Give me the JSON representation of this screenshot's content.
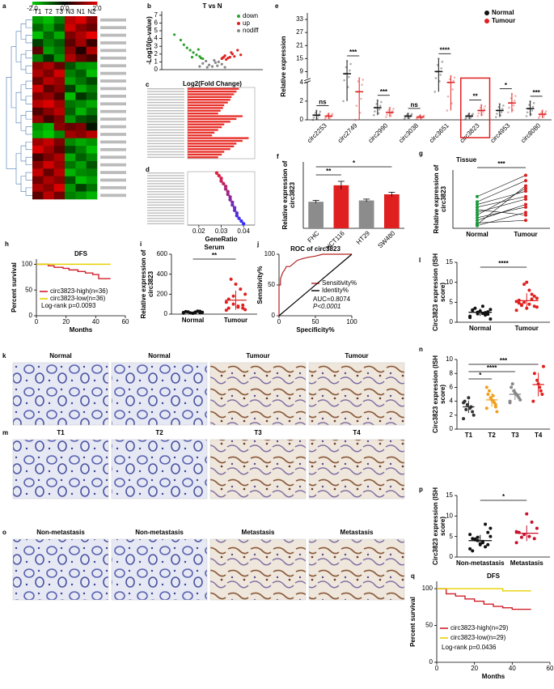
{
  "chart_data": [
    {
      "type": "heatmap",
      "panel": "a",
      "columns": [
        "T1",
        "T2",
        "T3",
        "N3",
        "N1",
        "N2"
      ],
      "colorticks": [
        {
          "value": -2,
          "label": "-2.0"
        },
        {
          "value": 0,
          "label": "0.0"
        },
        {
          "value": 2,
          "label": "2.0"
        }
      ],
      "values": [
        [
          -1.5,
          -1.8,
          -1.2,
          1.6,
          1.9,
          1.2
        ],
        [
          -1,
          -1.5,
          -0.8,
          1.8,
          1.2,
          0.9
        ],
        [
          -1.8,
          -1,
          -1.6,
          1.1,
          1.5,
          2
        ],
        [
          -0.6,
          -1.2,
          -0.9,
          0.8,
          1.4,
          0.5
        ],
        [
          0.8,
          -1.5,
          -1.1,
          1.2,
          0.3,
          1.5
        ],
        [
          -1.2,
          -0.5,
          -1.4,
          1.5,
          0.9,
          0.6
        ],
        [
          1.2,
          1.5,
          0.9,
          -0.8,
          -1.4,
          -1.5
        ],
        [
          1.5,
          1.1,
          1.8,
          -1.2,
          -0.9,
          -1.8
        ],
        [
          0.9,
          1.6,
          1.3,
          -1.5,
          -1.1,
          -0.7
        ],
        [
          1.8,
          0.8,
          1.2,
          -0.6,
          -1.6,
          -1.2
        ],
        [
          1.1,
          1.3,
          0.7,
          -1.8,
          -0.5,
          -0.9
        ],
        [
          1.6,
          1.9,
          1.4,
          -1.1,
          -1.3,
          -1.6
        ],
        [
          0.7,
          1.2,
          1.6,
          -0.9,
          -1.7,
          -1.1
        ],
        [
          1.3,
          0.6,
          1.1,
          -1.4,
          -0.8,
          -0.6
        ],
        [
          -1.4,
          -1.7,
          1.2,
          0.9,
          1.1,
          -0.2
        ],
        [
          -1.6,
          -1.9,
          -1.3,
          1.4,
          1.2,
          1.6
        ],
        [
          1.4,
          1.7,
          1.1,
          -1.3,
          -1.6,
          -1.4
        ],
        [
          1.9,
          1.4,
          0.8,
          -0.7,
          -1.2,
          -1.8
        ],
        [
          0.6,
          1.1,
          1.5,
          -1.6,
          -0.9,
          -1.3
        ],
        [
          1.2,
          1.8,
          1.3,
          -1.1,
          -1.5,
          -0.8
        ],
        [
          1.7,
          0.9,
          1.6,
          -1.7,
          -1.3,
          -1.2
        ],
        [
          1.0,
          1.5,
          1.2,
          -0.8,
          -1.8,
          -1.5
        ],
        [
          1.5,
          1.2,
          1.9,
          -1.4,
          -0.6,
          -1.1
        ],
        [
          0.8,
          1.6,
          1.0,
          -1.2,
          -1.4,
          -1.7
        ]
      ]
    },
    {
      "type": "scatter",
      "panel": "b",
      "title": "T vs N",
      "xlabel": "Log2(Fold Change)",
      "ylabel": "-Log10(p-value)",
      "xlim": [
        -8,
        8
      ],
      "ylim": [
        0,
        7.5
      ],
      "yticks": [
        0,
        1,
        2,
        3,
        4,
        5,
        6,
        7
      ],
      "series": [
        {
          "name": "down",
          "color": "#2ca02c",
          "x": [
            -6,
            -5,
            -4.5,
            -4,
            -3.5,
            -3,
            -2.5,
            -2,
            -1.8,
            -1.5,
            -3.2,
            -2.2
          ],
          "values": [
            4.5,
            3.8,
            3.2,
            2.8,
            2.5,
            2.2,
            1.9,
            1.7,
            1.5,
            1.4,
            1.6,
            2.6
          ]
        },
        {
          "name": "up",
          "color": "#e02020",
          "x": [
            1.5,
            1.8,
            2,
            2.5,
            3,
            3.5,
            4,
            4.5,
            2.2,
            2.8,
            1.6,
            3.2
          ],
          "values": [
            1.4,
            1.6,
            1.8,
            1.5,
            2.2,
            1.7,
            2.5,
            1.9,
            1.3,
            1.6,
            1.5,
            2.0
          ]
        },
        {
          "name": "nodiff",
          "color": "#888888",
          "x": [
            -1.5,
            -1,
            -0.5,
            0,
            0.5,
            1,
            1.5,
            -0.8,
            0.3,
            0.8,
            -2,
            2
          ],
          "values": [
            0.8,
            1.1,
            0.6,
            0.4,
            0.9,
            1.0,
            0.7,
            0.3,
            1.2,
            0.5,
            0.4,
            0.3
          ]
        }
      ]
    },
    {
      "type": "hbar",
      "panel": "c",
      "color": "#e8302a",
      "xlim": [
        0,
        0.55
      ],
      "values": [
        0.42,
        0.4,
        0.38,
        0.36,
        0.35,
        0.33,
        0.3,
        0.29,
        0.27,
        0.25,
        0.45,
        0.4,
        0.35,
        0.3,
        0.28,
        0.25,
        0.22,
        0.2,
        0.5,
        0.45,
        0.4,
        0.38,
        0.35,
        0.3,
        0.28,
        0.25
      ]
    },
    {
      "type": "dotx",
      "panel": "d",
      "xlabel": "GeneRatio",
      "xlim": [
        0.015,
        0.045
      ],
      "xticks": [
        0.02,
        0.03,
        0.04
      ],
      "values": [
        0.028,
        0.029,
        0.03,
        0.03,
        0.031,
        0.032,
        0.032,
        0.033,
        0.033,
        0.034,
        0.034,
        0.035,
        0.035,
        0.036,
        0.036,
        0.037,
        0.037,
        0.038,
        0.039,
        0.04
      ]
    },
    {
      "type": "grouped",
      "panel": "e",
      "ylabel": "Relative expression",
      "ylim": [
        0,
        36
      ],
      "ybreak": 4,
      "yticks": [
        0,
        2,
        4,
        9,
        15,
        21,
        27,
        33
      ],
      "categories": [
        "circ2253",
        "circ2749",
        "circ2990",
        "circ3038",
        "circ3651",
        "circ3823",
        "circ4953",
        "circ8080"
      ],
      "significance": [
        "ns",
        "***",
        "***",
        "ns",
        "****",
        "**",
        "*",
        "***"
      ],
      "series": [
        {
          "name": "Normal",
          "color": "#111111",
          "means": [
            0.5,
            8,
            1.3,
            0.4,
            9,
            0.4,
            1.0,
            1.2
          ],
          "sds": [
            0.5,
            6,
            0.8,
            0.3,
            6,
            0.3,
            0.7,
            0.8
          ]
        },
        {
          "name": "Tumour",
          "color": "#e02020",
          "means": [
            0.4,
            3,
            0.8,
            0.3,
            4,
            1.0,
            1.8,
            0.6
          ],
          "sds": [
            0.3,
            3,
            0.5,
            0.2,
            3,
            0.6,
            1,
            0.4
          ]
        }
      ]
    },
    {
      "type": "bar",
      "panel": "f",
      "ylabel": "Relative expression of circ3823",
      "ylim": [
        0,
        2.5
      ],
      "categories": [
        "FHC",
        "HCT116",
        "HT29",
        "SW480"
      ],
      "values": [
        1.0,
        1.62,
        1.05,
        1.28
      ],
      "errors": [
        0.05,
        0.15,
        0.05,
        0.08
      ],
      "colors": [
        "#8c8c8c",
        "#e02020",
        "#8c8c8c",
        "#e02020"
      ],
      "significance": [
        "**",
        "*"
      ]
    },
    {
      "type": "paired",
      "panel": "g",
      "title": "Tissue",
      "ylabel": "Relative expression of circ3823",
      "ylim": [
        0,
        2.2
      ],
      "categories": [
        "Normal",
        "Tumour"
      ],
      "colors": [
        "#1a9a3a",
        "#e02020"
      ],
      "significance": [
        "***"
      ],
      "points": [
        [
          0.1,
          0.3,
          0.5,
          0.8,
          1.0,
          0.2,
          0.6,
          0.4,
          0.15,
          0.7,
          0.9,
          1.2
        ],
        [
          0.6,
          0.9,
          1.5,
          1.2,
          1.8,
          0.3,
          1.1,
          0.8,
          1.6,
          0.5,
          1.4,
          2.0
        ]
      ]
    },
    {
      "type": "km",
      "panel": "h",
      "title": "DFS",
      "xlabel": "Months",
      "ylabel": "Percent survival",
      "annotation": "Log-rank p=0.0093",
      "xlim": [
        0,
        60
      ],
      "xticks": [
        0,
        20,
        40,
        60
      ],
      "ylim": [
        0,
        110
      ],
      "yticks": [
        0,
        50,
        100
      ],
      "series": [
        {
          "name": "circ3823-high(n=36)",
          "color": "#d0202a",
          "x": [
            0,
            8,
            12,
            18,
            22,
            28,
            33,
            38,
            42,
            50
          ],
          "values": [
            100,
            97,
            94,
            92,
            89,
            86,
            83,
            80,
            72,
            72
          ]
        },
        {
          "name": "circ3823-low(n=36)",
          "color": "#e8d000",
          "x": [
            0,
            50
          ],
          "values": [
            100,
            100
          ]
        }
      ]
    },
    {
      "type": "dotplot",
      "panel": "i",
      "title": "Serum",
      "ylabel": "Relative expression of circ3823",
      "ylim": [
        0,
        600
      ],
      "yticks": [
        0,
        200,
        400,
        600
      ],
      "categories": [
        "Normal",
        "Tumour"
      ],
      "colors": [
        "#111111",
        "#e02020"
      ],
      "significance": [
        "**"
      ],
      "points": [
        [
          10,
          15,
          20,
          12,
          25,
          18,
          30,
          8,
          22,
          16,
          28,
          14
        ],
        [
          40,
          60,
          80,
          100,
          150,
          200,
          250,
          300,
          350,
          120,
          90,
          70,
          180,
          60,
          45
        ]
      ],
      "means": [
        19,
        140
      ],
      "sds": [
        7,
        95
      ]
    },
    {
      "type": "roc",
      "panel": "j",
      "title": "ROC of circ3823",
      "xlabel": "Specificity%",
      "ylabel": "Sensitivity%",
      "annotations": [
        "AUC=0.8074",
        "P<0.0001"
      ],
      "xlim": [
        0,
        100
      ],
      "xticks": [
        0,
        50,
        100
      ],
      "ylim": [
        0,
        100
      ],
      "yticks": [
        0,
        50,
        100
      ],
      "series": [
        {
          "name": "Sensitivity%",
          "color": "#b22222",
          "x": [
            0,
            0,
            2,
            2,
            5,
            8,
            10,
            15,
            20,
            25,
            30,
            40,
            50,
            60,
            80,
            100
          ],
          "values": [
            0,
            50,
            50,
            60,
            70,
            75,
            80,
            80,
            85,
            90,
            92,
            95,
            97,
            100,
            100,
            100
          ]
        },
        {
          "name": "Identity%",
          "color": "#000000",
          "x": [
            0,
            100
          ],
          "values": [
            0,
            100
          ]
        }
      ]
    },
    {
      "type": "dotplot",
      "panel": "l",
      "ylabel": "Circ3823 expression (ISH score)",
      "ylim": [
        0,
        15
      ],
      "yticks": [
        0,
        5,
        10,
        15
      ],
      "categories": [
        "Normal",
        "Tumour"
      ],
      "colors": [
        "#111111",
        "#e02020"
      ],
      "significance": [
        "****"
      ],
      "points": [
        [
          1.5,
          2,
          2.2,
          2.5,
          3,
          3.2,
          1.8,
          2.8,
          3.5,
          1.2,
          2.6,
          4,
          2.1,
          3.1,
          0.8,
          2.4
        ],
        [
          3,
          4,
          4.5,
          5,
          5.5,
          6,
          7,
          3.5,
          4.2,
          5.2,
          6.5,
          8,
          9.5,
          4.8,
          3.8,
          5.8,
          10,
          4.4
        ]
      ],
      "means": [
        2.5,
        5.4
      ],
      "sds": [
        0.9,
        1.9
      ]
    },
    {
      "type": "dotplot",
      "panel": "n",
      "ylabel": "Circ3823 expression (ISH score)",
      "ylim": [
        0,
        10
      ],
      "yticks": [
        0,
        2,
        4,
        6,
        8,
        10
      ],
      "categories": [
        "T1",
        "T2",
        "T3",
        "T4"
      ],
      "colors": [
        "#333333",
        "#f0a020",
        "#888888",
        "#e02020"
      ],
      "significance": [
        "*",
        "****",
        "***"
      ],
      "points": [
        [
          1.5,
          2.5,
          3,
          3.5,
          4,
          2,
          3.2,
          4.5,
          2.8,
          3.8
        ],
        [
          3,
          3.5,
          4,
          4.5,
          5,
          2.5,
          3.8,
          4.2,
          5.5,
          6,
          3.2,
          4.8
        ],
        [
          4,
          4.5,
          5,
          5.5,
          6,
          4.2,
          4.8,
          5.2,
          6.5,
          3.8
        ],
        [
          4,
          5,
          6,
          7,
          8,
          9,
          5.5,
          6.5
        ]
      ],
      "means": [
        3.2,
        4.2,
        5,
        6.4
      ],
      "sds": [
        0.9,
        1,
        0.8,
        1.7
      ]
    },
    {
      "type": "dotplot",
      "panel": "p",
      "ylabel": "Circ3823 expression (ISH score)",
      "ylim": [
        0,
        15
      ],
      "yticks": [
        0,
        5,
        10,
        15
      ],
      "categories": [
        "Non-metastasis",
        "Metastasis"
      ],
      "colors": [
        "#111111",
        "#c8102e"
      ],
      "significance": [
        "*"
      ],
      "points": [
        [
          2,
          3,
          3.5,
          4,
          4.5,
          5,
          2.5,
          3,
          4.2,
          5.5,
          6,
          3.8,
          4.8,
          1.5,
          7,
          8,
          3.2,
          4.4
        ],
        [
          3.5,
          4.5,
          5,
          5.5,
          6,
          7,
          8.5,
          10.5,
          4.8,
          6.2
        ]
      ],
      "means": [
        4,
        5.8
      ],
      "sds": [
        1.4,
        1.9
      ]
    },
    {
      "type": "km",
      "panel": "q",
      "title": "DFS",
      "xlabel": "Months",
      "ylabel": "Percent survival",
      "annotation": "Log-rank p=0.0436",
      "xlim": [
        0,
        60
      ],
      "xticks": [
        0,
        20,
        40,
        60
      ],
      "ylim": [
        0,
        110
      ],
      "yticks": [
        0,
        50,
        100
      ],
      "series": [
        {
          "name": "circ3823-high(n=29)",
          "color": "#d0202a",
          "x": [
            0,
            5,
            10,
            15,
            20,
            25,
            30,
            35,
            40,
            50
          ],
          "values": [
            100,
            93,
            90,
            86,
            83,
            79,
            76,
            74,
            72,
            72
          ]
        },
        {
          "name": "circ3823-low(n=29)",
          "color": "#e8d000",
          "x": [
            0,
            30,
            35,
            50
          ],
          "values": [
            100,
            100,
            97,
            97
          ]
        }
      ]
    }
  ],
  "images": [
    {
      "panel": "k",
      "labels": [
        "Normal",
        "Normal",
        "Tumour",
        "Tumour"
      ]
    },
    {
      "panel": "m",
      "labels": [
        "T1",
        "T2",
        "T3",
        "T4"
      ]
    },
    {
      "panel": "o",
      "labels": [
        "Non-metastasis",
        "Non-metastasis",
        "Metastasis",
        "Metastasis"
      ]
    }
  ]
}
